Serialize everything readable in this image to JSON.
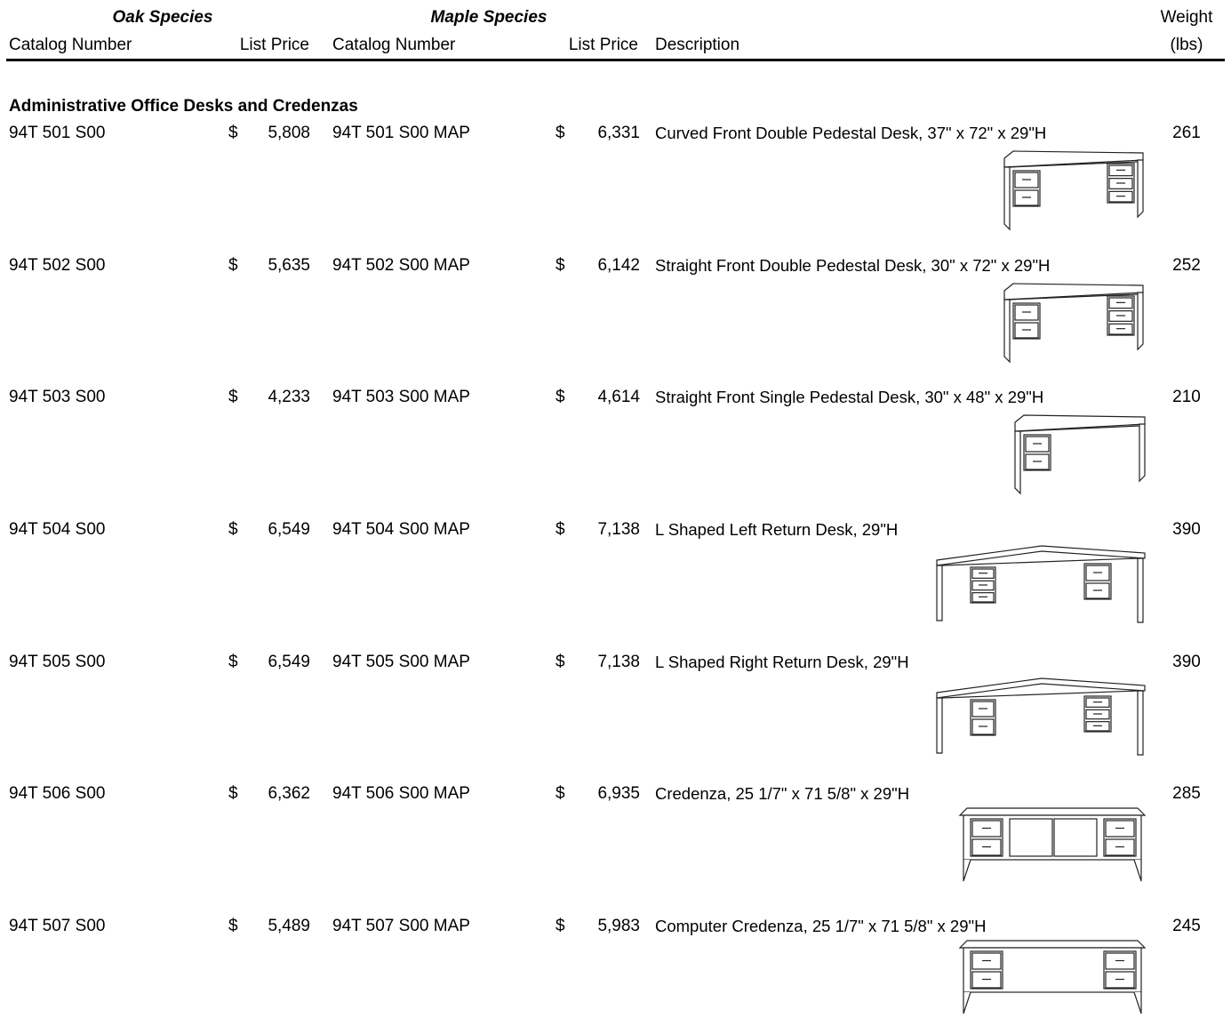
{
  "header": {
    "oak_species": "Oak Species",
    "maple_species": "Maple Species",
    "weight": "Weight",
    "weight_unit": "(lbs)",
    "columns": [
      "Catalog Number",
      "List Price",
      "Catalog Number",
      "List Price",
      "Description"
    ]
  },
  "currency": "$",
  "section": "Administrative Office Desks and Credenzas",
  "rows": [
    {
      "oak_catalog": "94T 501 S00",
      "oak_price": "5,808",
      "maple_catalog": "94T 501 S00 MAP",
      "maple_price": "6,331",
      "description": "Curved Front Double Pedestal Desk, 37\" x 72\" x 29\"H",
      "weight": "261"
    },
    {
      "oak_catalog": "94T 502 S00",
      "oak_price": "5,635",
      "maple_catalog": "94T 502 S00 MAP",
      "maple_price": "6,142",
      "description": "Straight Front Double Pedestal Desk, 30\" x 72\" x 29\"H",
      "weight": "252"
    },
    {
      "oak_catalog": "94T 503 S00",
      "oak_price": "4,233",
      "maple_catalog": "94T 503 S00 MAP",
      "maple_price": "4,614",
      "description": "Straight Front Single Pedestal Desk, 30\" x 48\" x 29\"H",
      "weight": "210"
    },
    {
      "oak_catalog": "94T 504 S00",
      "oak_price": "6,549",
      "maple_catalog": "94T 504 S00 MAP",
      "maple_price": "7,138",
      "description": "L Shaped Left Return Desk, 29\"H",
      "weight": "390"
    },
    {
      "oak_catalog": "94T 505 S00",
      "oak_price": "6,549",
      "maple_catalog": "94T 505 S00 MAP",
      "maple_price": "7,138",
      "description": "L Shaped Right Return Desk, 29\"H",
      "weight": "390"
    },
    {
      "oak_catalog": "94T 506 S00",
      "oak_price": "6,362",
      "maple_catalog": "94T 506 S00 MAP",
      "maple_price": "6,935",
      "description": "Credenza, 25 1/7\" x 71 5/8\" x 29\"H",
      "weight": "285"
    },
    {
      "oak_catalog": "94T 507 S00",
      "oak_price": "5,489",
      "maple_catalog": "94T 507 S00 MAP",
      "maple_price": "5,983",
      "description": "Computer Credenza, 25 1/7\" x 71 5/8\" x 29\"H",
      "weight": "245"
    }
  ]
}
